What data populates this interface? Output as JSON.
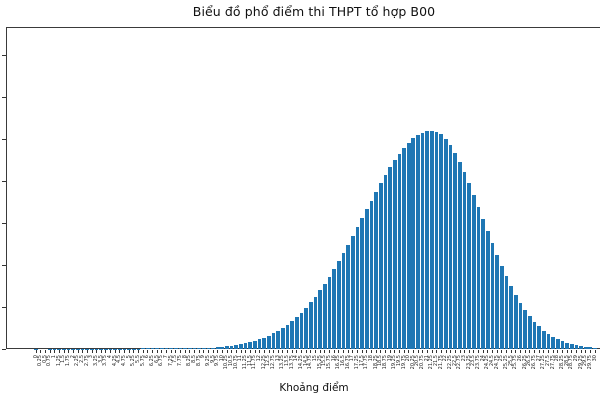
{
  "chart_data": {
    "type": "bar",
    "title": "Biểu đồ phổ điểm thi THPT tổ hợp B00",
    "xlabel": "Khoảng điểm",
    "ylabel": "",
    "bar_color": "#1f77b4",
    "x_tick_label_rotation": 90,
    "legend": "none",
    "grid": false,
    "ylim": [
      0,
      15333
    ],
    "y_axis": {
      "labels_visible": false,
      "tick_count": 8,
      "estimated_tick_step": 2000
    },
    "values_estimated": true,
    "categories": [
      "0",
      "0.25",
      "0.5",
      "0.75",
      "1",
      "1.25",
      "1.5",
      "1.75",
      "2",
      "2.25",
      "2.5",
      "2.75",
      "3",
      "3.25",
      "3.5",
      "3.75",
      "4",
      "4.25",
      "4.5",
      "4.75",
      "5",
      "5.25",
      "5.5",
      "5.75",
      "6",
      "6.25",
      "6.5",
      "6.75",
      "7",
      "7.25",
      "7.5",
      "7.75",
      "8",
      "8.25",
      "8.5",
      "8.75",
      "9",
      "9.25",
      "9.5",
      "9.75",
      "10",
      "10.25",
      "10.5",
      "10.75",
      "11",
      "11.25",
      "11.5",
      "11.75",
      "12",
      "12.25",
      "12.5",
      "12.75",
      "13",
      "13.25",
      "13.5",
      "13.75",
      "14",
      "14.25",
      "14.5",
      "14.75",
      "15",
      "15.25",
      "15.5",
      "15.75",
      "16",
      "16.25",
      "16.5",
      "16.75",
      "17",
      "17.25",
      "17.5",
      "17.75",
      "18",
      "18.25",
      "18.5",
      "18.75",
      "19",
      "19.25",
      "19.5",
      "19.75",
      "20",
      "20.25",
      "20.5",
      "20.75",
      "21",
      "21.25",
      "21.5",
      "21.75",
      "22",
      "22.25",
      "22.5",
      "22.75",
      "23",
      "23.25",
      "23.5",
      "23.75",
      "24",
      "24.25",
      "24.5",
      "24.75",
      "25",
      "25.25",
      "25.5",
      "25.75",
      "26",
      "26.25",
      "26.5",
      "26.75",
      "27",
      "27.25",
      "27.5",
      "27.75",
      "28",
      "28.25",
      "28.5",
      "28.75",
      "29",
      "29.25",
      "29.5",
      "29.75",
      "30"
    ],
    "values": [
      6,
      3,
      3,
      4,
      4,
      5,
      5,
      6,
      7,
      8,
      9,
      10,
      11,
      12,
      13,
      14,
      15,
      16,
      18,
      19,
      21,
      22,
      24,
      26,
      28,
      30,
      32,
      34,
      36,
      38,
      40,
      42,
      44,
      46,
      48,
      52,
      58,
      63,
      70,
      83,
      102,
      125,
      153,
      185,
      224,
      270,
      323,
      385,
      457,
      540,
      635,
      743,
      866,
      1005,
      1160,
      1333,
      1525,
      1737,
      1970,
      2223,
      2497,
      2792,
      3108,
      3444,
      3800,
      4173,
      4562,
      4965,
      5377,
      5798,
      6222,
      6648,
      7071,
      7487,
      7890,
      8277,
      8645,
      8987,
      9300,
      9580,
      9823,
      10027,
      10189,
      10306,
      10376,
      10400,
      10355,
      10223,
      10006,
      9711,
      9343,
      8913,
      8430,
      7906,
      7350,
      6775,
      6191,
      5610,
      5040,
      4489,
      3964,
      3470,
      3013,
      2594,
      2213,
      1872,
      1570,
      1306,
      1077,
      881,
      714,
      573,
      457,
      361,
      283,
      220,
      169,
      129,
      98,
      73,
      54
    ]
  }
}
